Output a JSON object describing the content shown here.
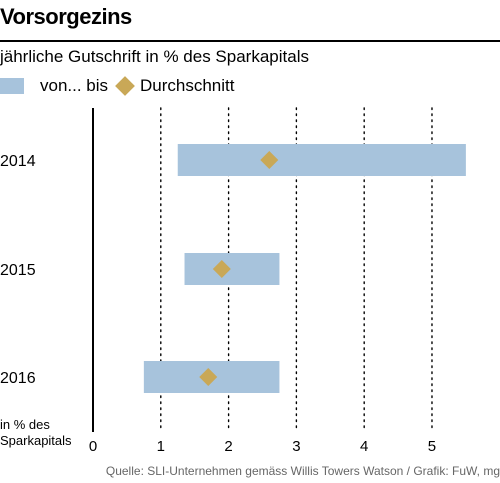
{
  "title": "Vorsorgezins",
  "colors": {
    "range": "#a7c3dc",
    "average": "#c9a857",
    "axis": "#000000",
    "grid": "#000000",
    "source_text": "#666666"
  },
  "legend": {
    "range_label": "von... bis",
    "average_label": "Durchschnitt"
  },
  "unit_label_line1": "in % des",
  "unit_label_line2": "Sparkapitals",
  "source": "Quelle: SLI-Unternehmen gemäss Willis Towers Watson / Grafik: FuW, mg",
  "chart_data": {
    "type": "bar",
    "orientation": "horizontal",
    "subtitle": "jährliche Gutschrift in % des Sparkapitals",
    "categories": [
      "2014",
      "2015",
      "2016"
    ],
    "series": [
      {
        "name": "von... bis",
        "kind": "range",
        "low": [
          1.25,
          1.35,
          0.75
        ],
        "high": [
          5.5,
          2.75,
          2.75
        ]
      },
      {
        "name": "Durchschnitt",
        "kind": "point",
        "values": [
          2.6,
          1.9,
          1.7
        ]
      }
    ],
    "xlim": [
      0,
      5.9
    ],
    "xticks": [
      0,
      1,
      2,
      3,
      4,
      5
    ],
    "grid": "vertical dotted",
    "legend_position": "top-left"
  }
}
